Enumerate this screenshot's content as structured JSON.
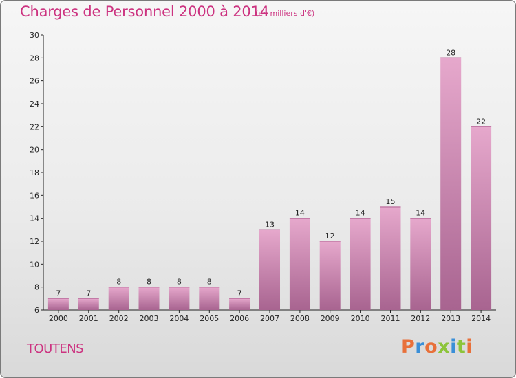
{
  "header": {
    "title": "Charges de Personnel 2000 à 2014",
    "subtitle": "(en milliers d'€)"
  },
  "footer": {
    "place": "TOUTENS",
    "brand": "Proxiti"
  },
  "colors": {
    "title": "#cc3380",
    "bar_light": "#e6a8cc",
    "bar_dark": "#a86490",
    "axis": "#222222",
    "brand_letters": [
      "#e8703a",
      "#3a8fd8",
      "#e8703a",
      "#8cc43a",
      "#3a8fd8",
      "#8cc43a",
      "#e8703a"
    ]
  },
  "chart_data": {
    "type": "bar",
    "categories": [
      "2000",
      "2001",
      "2002",
      "2003",
      "2004",
      "2005",
      "2006",
      "2007",
      "2008",
      "2009",
      "2010",
      "2011",
      "2012",
      "2013",
      "2014"
    ],
    "values": [
      7,
      7,
      8,
      8,
      8,
      8,
      7,
      13,
      14,
      12,
      14,
      15,
      14,
      28,
      22
    ],
    "title": "Charges de Personnel 2000 à 2014",
    "subtitle": "(en milliers d'€)",
    "xlabel": "",
    "ylabel": "",
    "ylim": [
      6,
      30
    ],
    "yticks": [
      6,
      8,
      10,
      12,
      14,
      16,
      18,
      20,
      22,
      24,
      26,
      28,
      30
    ],
    "grid": false,
    "data_labels": true
  }
}
